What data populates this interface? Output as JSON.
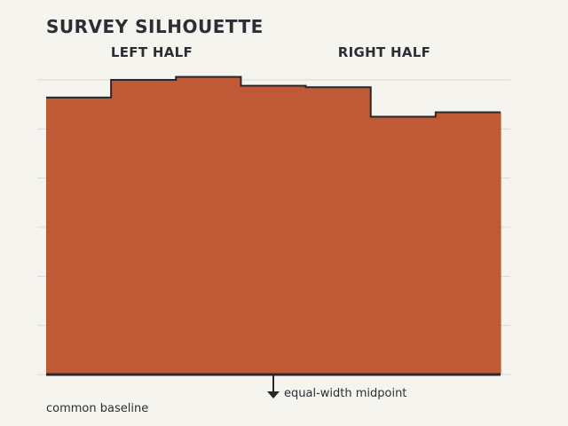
{
  "chart_data": {
    "type": "area",
    "title": "SURVEY SILHOUETTE",
    "subtitle": "",
    "xlabel": "",
    "ylabel": "",
    "series": [
      {
        "values": [
          0.94,
          1.0,
          1.01,
          0.98,
          0.975,
          0.875,
          0.89
        ]
      }
    ],
    "ylim": [
      0,
      1.0
    ],
    "grid": true,
    "grid_count": 6,
    "left_label": "LEFT HALF",
    "right_label": "RIGHT HALF",
    "midpoint_note": "equal-width midpoint",
    "baseline_note": "common baseline",
    "colors": {
      "fill": "#c05a36",
      "stroke": "#26282b",
      "grid": "#d9d8d2",
      "background": "#f5f4ef"
    }
  }
}
